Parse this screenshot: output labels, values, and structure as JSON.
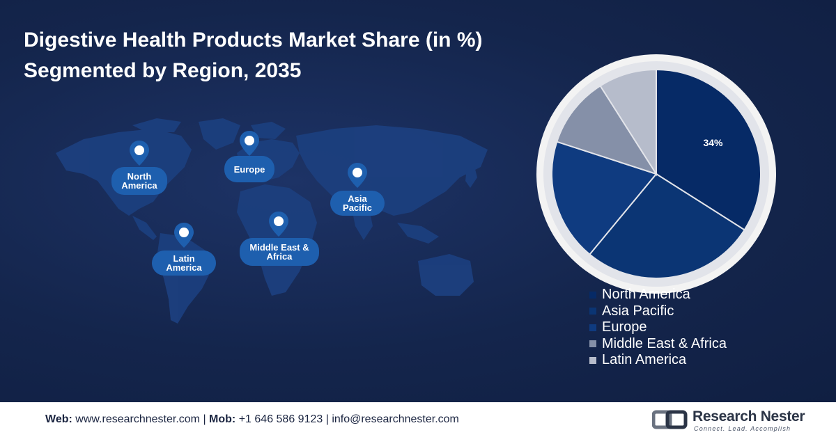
{
  "title_line1": "Digestive Health Products Market Share (in %)",
  "title_line2": "Segmented by Region, 2035",
  "regions": [
    {
      "label": "North America"
    },
    {
      "label": "Europe"
    },
    {
      "label": "Asia Pacific"
    },
    {
      "label": "Latin America"
    },
    {
      "label": "Middle East & Africa"
    }
  ],
  "chart_data": {
    "type": "pie",
    "title": "Digestive Health Products Market Share (in %) Segmented by Region, 2035",
    "categories": [
      "North America",
      "Asia Pacific",
      "Europe",
      "Middle East & Africa",
      "Latin America"
    ],
    "values": [
      34,
      27,
      19,
      11,
      9
    ],
    "data_labels": [
      "34%",
      "",
      "",
      "",
      ""
    ],
    "colors": [
      "#062a66",
      "#0b3574",
      "#0f3b80",
      "#8590a8",
      "#b6bccb"
    ],
    "legend_position": "bottom-right"
  },
  "footer": {
    "web_label": "Web:",
    "web_value": "www.researchnester.com",
    "sep1": " | ",
    "mob_label": "Mob:",
    "mob_value": "+1 646 586 9123",
    "sep2": " | ",
    "email": "info@researchnester.com"
  },
  "logo": {
    "name": "Research Nester",
    "tagline": "Connect. Lead. Accomplish"
  },
  "colors": {
    "background": "#13244a",
    "label_bubble": "#1e5fae",
    "map_land": "#1c3f7e"
  }
}
